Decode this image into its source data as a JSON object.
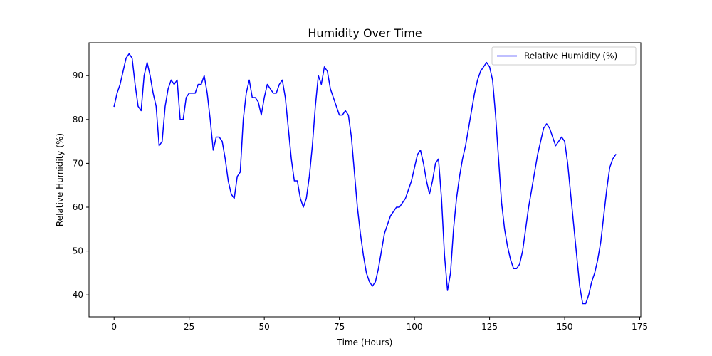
{
  "chart_data": {
    "type": "line",
    "title": "Humidity Over Time",
    "xlabel": "Time (Hours)",
    "ylabel": "Relative Humidity (%)",
    "xlim": [
      -8.35,
      175.35
    ],
    "ylim": [
      35,
      97.5
    ],
    "xticks": [
      0,
      25,
      50,
      75,
      100,
      125,
      150,
      175
    ],
    "yticks": [
      40,
      50,
      60,
      70,
      80,
      90
    ],
    "grid": false,
    "legend": {
      "position": "top-right",
      "entries": [
        "Relative Humidity (%)"
      ]
    },
    "series": [
      {
        "name": "Relative Humidity (%)",
        "color": "#0000ff",
        "x": [
          0,
          1,
          2,
          3,
          4,
          5,
          6,
          7,
          8,
          9,
          10,
          11,
          12,
          13,
          14,
          15,
          16,
          17,
          18,
          19,
          20,
          21,
          22,
          23,
          24,
          25,
          26,
          27,
          28,
          29,
          30,
          31,
          32,
          33,
          34,
          35,
          36,
          37,
          38,
          39,
          40,
          41,
          42,
          43,
          44,
          45,
          46,
          47,
          48,
          49,
          50,
          51,
          52,
          53,
          54,
          55,
          56,
          57,
          58,
          59,
          60,
          61,
          62,
          63,
          64,
          65,
          66,
          67,
          68,
          69,
          70,
          71,
          72,
          73,
          74,
          75,
          76,
          77,
          78,
          79,
          80,
          81,
          82,
          83,
          84,
          85,
          86,
          87,
          88,
          89,
          90,
          91,
          92,
          93,
          94,
          95,
          96,
          97,
          98,
          99,
          100,
          101,
          102,
          103,
          104,
          105,
          106,
          107,
          108,
          109,
          110,
          111,
          112,
          113,
          114,
          115,
          116,
          117,
          118,
          119,
          120,
          121,
          122,
          123,
          124,
          125,
          126,
          127,
          128,
          129,
          130,
          131,
          132,
          133,
          134,
          135,
          136,
          137,
          138,
          139,
          140,
          141,
          142,
          143,
          144,
          145,
          146,
          147,
          148,
          149,
          150,
          151,
          152,
          153,
          154,
          155,
          156,
          157,
          158,
          159,
          160,
          161,
          162,
          163,
          164,
          165,
          166,
          167
        ],
        "y": [
          83,
          86,
          88,
          91,
          94,
          95,
          94,
          88,
          83,
          82,
          90,
          93,
          90,
          86,
          83,
          74,
          75,
          83,
          87,
          89,
          88,
          89,
          80,
          80,
          85,
          86,
          86,
          86,
          88,
          88,
          90,
          86,
          80,
          73,
          76,
          76,
          75,
          71,
          66,
          63,
          62,
          67,
          68,
          80,
          86,
          89,
          85,
          85,
          84,
          81,
          85,
          88,
          87,
          86,
          86,
          88,
          89,
          85,
          78,
          71,
          66,
          66,
          62,
          60,
          62,
          67,
          74,
          83,
          90,
          88,
          92,
          91,
          87,
          85,
          83,
          81,
          81,
          82,
          81,
          76,
          68,
          60,
          54,
          49,
          45,
          43,
          42,
          43,
          46,
          50,
          54,
          56,
          58,
          59,
          60,
          60,
          61,
          62,
          64,
          66,
          69,
          72,
          73,
          70,
          66,
          63,
          66,
          70,
          71,
          62,
          49,
          41,
          45,
          55,
          62,
          67,
          71,
          74,
          78,
          82,
          86,
          89,
          91,
          92,
          93,
          92,
          89,
          81,
          71,
          61,
          55,
          51,
          48,
          46,
          46,
          47,
          50,
          55,
          60,
          64,
          68,
          72,
          75,
          78,
          79,
          78,
          76,
          74,
          75,
          76,
          75,
          70,
          63,
          56,
          49,
          42,
          38,
          38,
          40,
          43,
          45,
          48,
          52,
          58,
          64,
          69,
          71,
          72
        ]
      }
    ]
  }
}
